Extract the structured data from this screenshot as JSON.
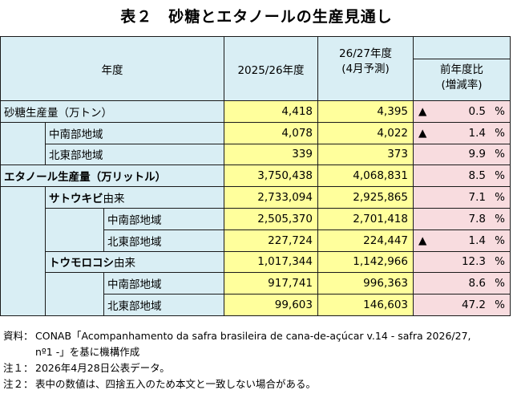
{
  "title": "表２　砂糖とエタノールの生産見通し",
  "header": {
    "col_label": "年度",
    "col_2025": "2025/26年度",
    "col_2026_line1": "26/27年度",
    "col_2026_line2": "(4月予測)",
    "col_ratio_line1": "前年度比",
    "col_ratio_line2": "(増減率)"
  },
  "rows": [
    {
      "label": "砂糖生産量（万トン）",
      "v2025": "4,418",
      "v2026": "4,395",
      "tri": "▲",
      "ratio": "0.5",
      "pct": "%"
    },
    {
      "label": "中南部地域",
      "v2025": "4,078",
      "v2026": "4,022",
      "tri": "▲",
      "ratio": "1.4",
      "pct": "%"
    },
    {
      "label": "北東部地域",
      "v2025": "339",
      "v2026": "373",
      "tri": "",
      "ratio": "9.9",
      "pct": "%"
    },
    {
      "label": "エタノール生産量（万リットル）",
      "v2025": "3,750,438",
      "v2026": "4,068,831",
      "tri": "",
      "ratio": "8.5",
      "pct": "%"
    },
    {
      "label_bold": "サトウキビ",
      "label_rest": "由来",
      "v2025": "2,733,094",
      "v2026": "2,925,865",
      "tri": "",
      "ratio": "7.1",
      "pct": "%"
    },
    {
      "label": "中南部地域",
      "v2025": "2,505,370",
      "v2026": "2,701,418",
      "tri": "",
      "ratio": "7.8",
      "pct": "%"
    },
    {
      "label": "北東部地域",
      "v2025": "227,724",
      "v2026": "224,447",
      "tri": "▲",
      "ratio": "1.4",
      "pct": "%"
    },
    {
      "label_bold": "トウモロコシ",
      "label_rest": "由来",
      "v2025": "1,017,344",
      "v2026": "1,142,966",
      "tri": "",
      "ratio": "12.3",
      "pct": "%"
    },
    {
      "label": "中南部地域",
      "v2025": "917,741",
      "v2026": "996,363",
      "tri": "",
      "ratio": "8.6",
      "pct": "%"
    },
    {
      "label": "北東部地域",
      "v2025": "99,603",
      "v2026": "146,603",
      "tri": "",
      "ratio": "47.2",
      "pct": "%"
    }
  ],
  "notes": {
    "source_key": "資料：",
    "source_text_1": "CONAB「Acompanhamento da safra brasileira de cana-de-açúcar v.14 - safra 2026/27,",
    "source_text_2": "nº1 -」を基に機構作成",
    "note1_key": "注１：",
    "note1_text": "2026年4月28日公表データ。",
    "note2_key": "注２：",
    "note2_text": "表中の数値は、四捨五入のため本文と一致しない場合がある。"
  }
}
